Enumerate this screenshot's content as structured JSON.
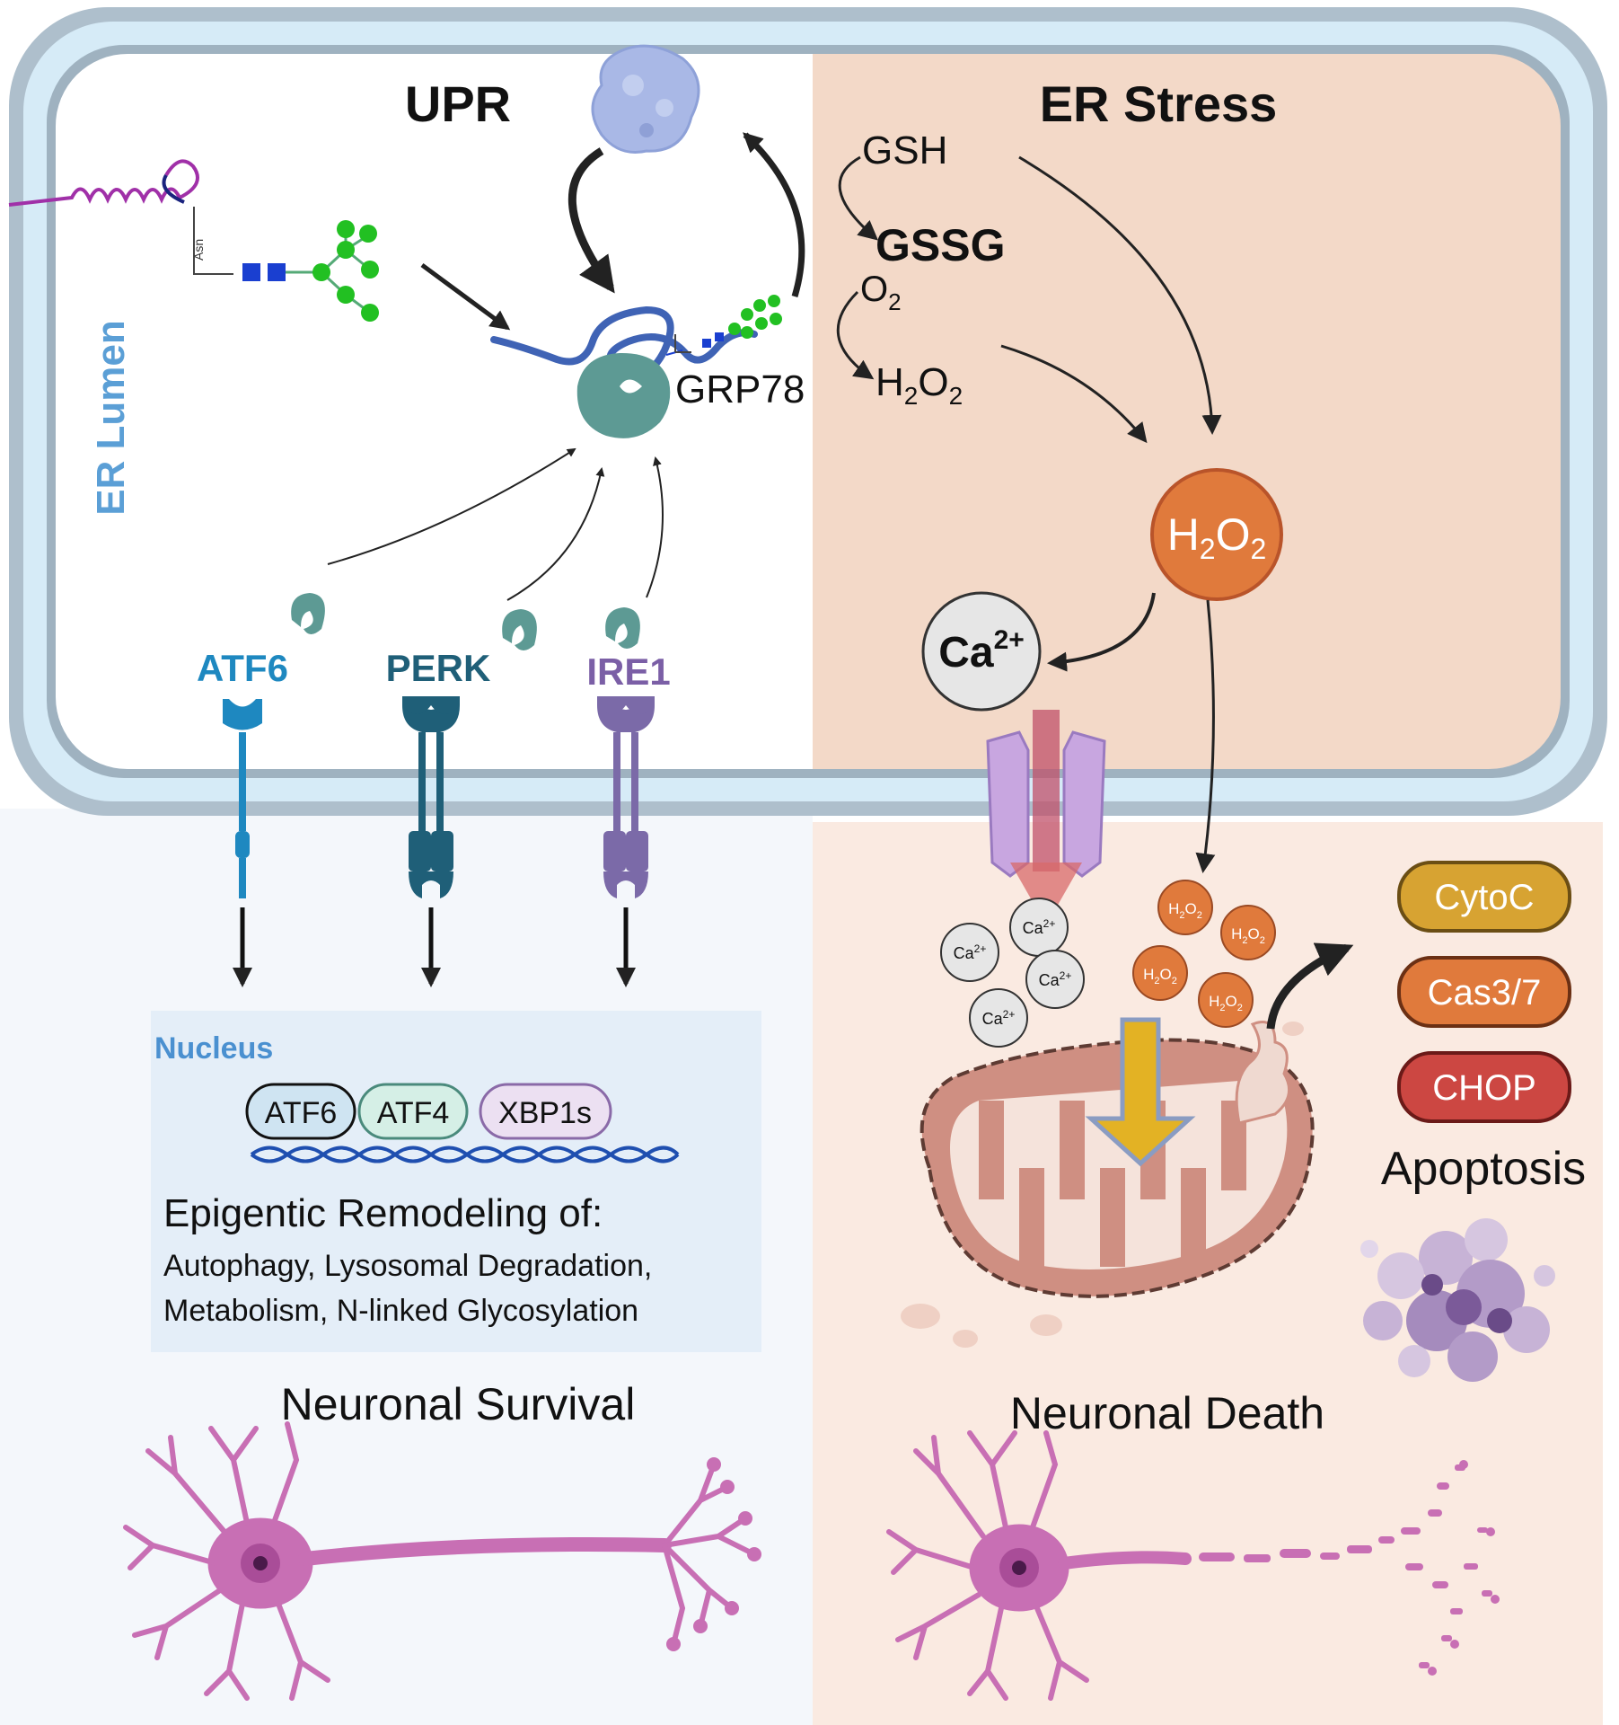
{
  "er": {
    "upr_title": "UPR",
    "stress_title": "ER Stress",
    "lumen_label": "ER Lumen",
    "grp78": "GRP78",
    "asn": "Asn"
  },
  "stress": {
    "gsh": "GSH",
    "gssg": "GSSG",
    "o2_base": "O",
    "o2_sub": "2",
    "h_base": "H",
    "two": "2",
    "o_base": "O",
    "ca_base": "Ca",
    "ca_sup": "2+"
  },
  "sensors": {
    "atf6": "ATF6",
    "perk": "PERK",
    "ire1": "IRE1"
  },
  "nucleus": {
    "title": "Nucleus",
    "factors": [
      "ATF6",
      "ATF4",
      "XBP1s"
    ],
    "heading": "Epigentic Remodeling of:",
    "line1": "Autophagy, Lysosomal Degradation,",
    "line2": "Metabolism, N-linked Glycosylation"
  },
  "apoptosis": {
    "markers": [
      "CytoC",
      "Cas3/7",
      "CHOP"
    ],
    "label": "Apoptosis"
  },
  "outcomes": {
    "survival": "Neuronal Survival",
    "death": "Neuronal Death"
  },
  "colors": {
    "membrane_outer": "#aebfcc",
    "membrane_inner": "#d8ecf8",
    "stress_bg": "#f3d9c8",
    "death_bg": "#faeae1",
    "survival_bg": "#f3f6fb",
    "nucleus_bg": "#e4eef8",
    "atf6": "#1e88c0",
    "perk": "#1f5f78",
    "ire1": "#7b5fa6",
    "h2o2": "#e07a3c",
    "cytoc": "#d7a332",
    "cas37": "#e07a3c",
    "chop": "#cc4742",
    "neuron": "#c86fb4"
  }
}
